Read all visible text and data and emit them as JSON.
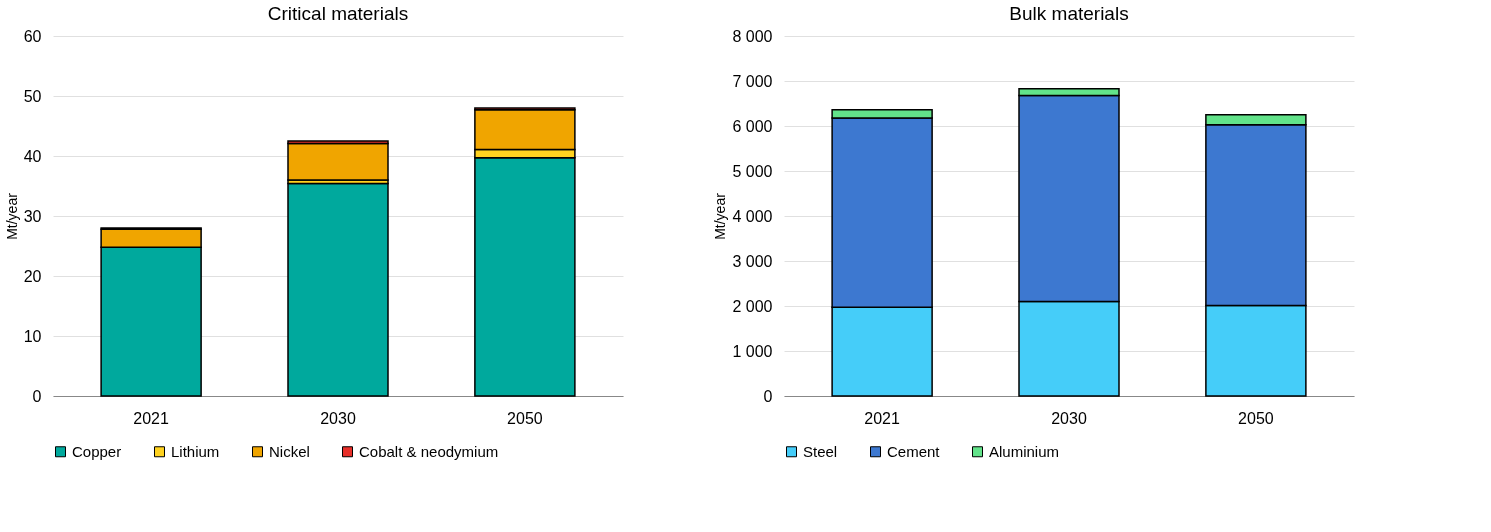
{
  "chart_data": [
    {
      "type": "bar",
      "title": "Critical materials",
      "ylabel": "Mt/year",
      "stacked": true,
      "grid": "y",
      "legend": "bottom",
      "categories": [
        "2021",
        "2030",
        "2050"
      ],
      "ylim": [
        0,
        60
      ],
      "yticks": [
        0,
        10,
        20,
        30,
        40,
        50,
        60
      ],
      "series": [
        {
          "name": "Copper",
          "color": "#00a99d",
          "values": [
            24.8,
            35.4,
            39.7
          ]
        },
        {
          "name": "Lithium",
          "color": "#ffd21f",
          "values": [
            null,
            0.6,
            1.4
          ]
        },
        {
          "name": "Nickel",
          "color": "#f0a500",
          "values": [
            3.0,
            6.1,
            6.6
          ]
        },
        {
          "name": "Cobalt & neodymium",
          "color": "#e8302a",
          "values": [
            0.2,
            0.4,
            0.3
          ]
        }
      ]
    },
    {
      "type": "bar",
      "title": "Bulk materials",
      "ylabel": "Mt/year",
      "stacked": true,
      "grid": "y",
      "legend": "bottom",
      "categories": [
        "2021",
        "2030",
        "2050"
      ],
      "ylim": [
        0,
        8000
      ],
      "yticks": [
        0,
        {
          "value": 1000,
          "label": "1 000"
        },
        {
          "value": 2000,
          "label": "2 000"
        },
        {
          "value": 3000,
          "label": "3 000"
        },
        {
          "value": 4000,
          "label": "4 000"
        },
        {
          "value": 5000,
          "label": "5 000"
        },
        {
          "value": 6000,
          "label": "6 000"
        },
        {
          "value": 7000,
          "label": "7 000"
        },
        {
          "value": 8000,
          "label": "8 000"
        }
      ],
      "series": [
        {
          "name": "Steel",
          "color": "#45cdf9",
          "values": [
            1970,
            2100,
            2010
          ]
        },
        {
          "name": "Cement",
          "color": "#3d78d0",
          "values": [
            4210,
            4580,
            4020
          ]
        },
        {
          "name": "Aluminium",
          "color": "#62e38a",
          "values": [
            180,
            150,
            220
          ]
        }
      ]
    }
  ]
}
